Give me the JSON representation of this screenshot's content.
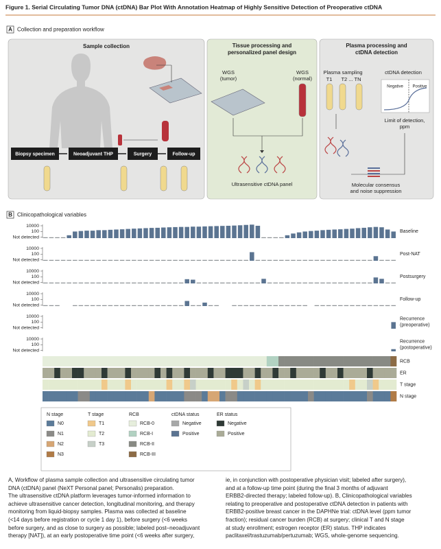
{
  "title": "Figure 1. Serial Circulating Tumor DNA (ctDNA) Bar Plot With Annotation Heatmap of Highly Sensitive Detection of Preoperative ctDNA",
  "panel_a": {
    "letter": "A",
    "heading": "Collection and preparation workflow",
    "sample_collection": {
      "title": "Sample collection",
      "steps": [
        "Biopsy specimen",
        "Neoadjuvant THP",
        "Surgery",
        "Follow-up"
      ]
    },
    "tissue": {
      "title": [
        "Tissue processing and",
        "personalized panel design"
      ],
      "wgs_tumor": [
        "WGS",
        "(tumor)"
      ],
      "wgs_normal": [
        "WGS",
        "(normal)"
      ],
      "panel": "Ultrasensitive ctDNA panel"
    },
    "plasma": {
      "title": [
        "Plasma processing and",
        "ctDNA detection"
      ],
      "sampling": "Plasma sampling",
      "t1": "T1",
      "t2": "T2 ... TN",
      "detection": "ctDNA detection",
      "negative": "Negative",
      "positive": "Positive",
      "lod": [
        "Limit of detection,",
        "ppm"
      ],
      "consensus": [
        "Molecular consensus",
        "and noise suppression"
      ]
    }
  },
  "chart_data": {
    "type": "bar",
    "letter": "B",
    "heading": "Clinicopathological variables",
    "log_scale": true,
    "ylim": [
      0.5,
      30000
    ],
    "yticks": [
      {
        "value": 10000,
        "label": "10000"
      },
      100,
      {
        "value": 1,
        "label": "Not detected"
      }
    ],
    "color": "#5b7491",
    "not_detected_color": "#8f9497",
    "rows": [
      {
        "name": [
          "Baseline"
        ],
        "values": [
          1,
          1,
          1,
          1,
          5,
          100,
          150,
          200,
          200,
          300,
          300,
          400,
          500,
          600,
          800,
          1000,
          1200,
          1500,
          1800,
          2000,
          2500,
          3000,
          3500,
          4000,
          4000,
          5000,
          5000,
          6000,
          7000,
          8000,
          9000,
          10000,
          12000,
          15000,
          20000,
          25000,
          10000,
          1,
          1,
          1,
          1,
          5,
          20,
          50,
          100,
          150,
          200,
          300,
          400,
          500,
          600,
          800,
          1000,
          1500,
          2000,
          3000,
          4000,
          3000,
          500,
          100
        ]
      },
      {
        "name": [
          "Post-NAT"
        ],
        "values": [
          1,
          1,
          1,
          1,
          1,
          1,
          1,
          1,
          1,
          1,
          1,
          1,
          1,
          1,
          1,
          1,
          1,
          1,
          1,
          1,
          1,
          1,
          1,
          1,
          1,
          1,
          1,
          1,
          1,
          1,
          1,
          1,
          1,
          1,
          1,
          500,
          1,
          1,
          1,
          1,
          1,
          1,
          1,
          1,
          1,
          1,
          1,
          1,
          1,
          1,
          1,
          1,
          1,
          1,
          1,
          1,
          20,
          1,
          1,
          1
        ]
      },
      {
        "name": [
          "Postsurgery"
        ],
        "values": [
          1,
          1,
          1,
          1,
          1,
          1,
          1,
          1,
          1,
          1,
          1,
          1,
          1,
          1,
          1,
          1,
          1,
          1,
          1,
          1,
          1,
          1,
          1,
          1,
          15,
          10,
          1,
          1,
          1,
          1,
          1,
          1,
          1,
          1,
          1,
          1,
          1,
          20,
          1,
          1,
          1,
          1,
          1,
          1,
          1,
          1,
          1,
          1,
          1,
          1,
          1,
          1,
          1,
          1,
          1,
          1,
          60,
          20,
          1,
          1
        ]
      },
      {
        "name": [
          "Follow-up"
        ],
        "values": [
          1,
          1,
          1,
          null,
          null,
          1,
          1,
          1,
          1,
          1,
          1,
          1,
          1,
          1,
          1,
          1,
          1,
          1,
          1,
          1,
          1,
          1,
          1,
          1,
          30,
          1,
          1,
          8,
          1,
          1,
          null,
          null,
          1,
          1,
          1,
          1,
          1,
          1,
          1,
          1,
          1,
          1,
          1,
          1,
          1,
          null,
          1,
          1,
          1,
          1,
          1,
          1,
          1,
          1,
          1,
          1,
          1,
          1,
          1,
          1
        ]
      },
      {
        "name": [
          "Recurrence",
          "(preoperative)"
        ],
        "values": [
          null,
          null,
          null,
          null,
          null,
          null,
          null,
          null,
          null,
          null,
          null,
          null,
          null,
          null,
          null,
          null,
          null,
          null,
          null,
          null,
          null,
          null,
          null,
          null,
          null,
          null,
          null,
          null,
          null,
          null,
          null,
          null,
          null,
          null,
          null,
          null,
          null,
          null,
          null,
          null,
          null,
          null,
          null,
          null,
          null,
          null,
          null,
          null,
          null,
          null,
          null,
          null,
          null,
          null,
          null,
          null,
          null,
          null,
          null,
          100
        ]
      },
      {
        "name": [
          "Recurrence",
          "(postoperative)"
        ],
        "values": [
          null,
          null,
          null,
          null,
          null,
          null,
          null,
          null,
          null,
          null,
          null,
          null,
          null,
          null,
          null,
          null,
          null,
          null,
          null,
          null,
          null,
          null,
          null,
          null,
          null,
          null,
          null,
          null,
          null,
          null,
          null,
          null,
          null,
          null,
          null,
          null,
          null,
          null,
          null,
          null,
          null,
          null,
          null,
          null,
          null,
          null,
          null,
          null,
          null,
          null,
          null,
          null,
          null,
          null,
          null,
          null,
          null,
          null,
          null,
          3
        ]
      }
    ],
    "heatmap": [
      {
        "name": "RCB",
        "colors": [
          "#e6eedc",
          "#b2d2c2",
          "#888a84",
          "#8c6b45"
        ],
        "values": [
          0,
          0,
          0,
          0,
          0,
          0,
          0,
          0,
          0,
          0,
          0,
          0,
          0,
          0,
          0,
          0,
          0,
          0,
          0,
          0,
          0,
          0,
          0,
          0,
          0,
          0,
          0,
          0,
          0,
          0,
          0,
          0,
          0,
          0,
          0,
          0,
          0,
          0,
          1,
          1,
          2,
          2,
          2,
          2,
          2,
          2,
          2,
          2,
          2,
          2,
          2,
          2,
          2,
          2,
          2,
          2,
          2,
          2,
          2,
          3
        ]
      },
      {
        "name": "ER",
        "colors": [
          "#2f3a36",
          "#aaab97"
        ],
        "values": [
          1,
          1,
          0,
          1,
          1,
          0,
          0,
          1,
          1,
          1,
          0,
          1,
          1,
          1,
          0,
          1,
          1,
          1,
          1,
          0,
          1,
          0,
          1,
          1,
          0,
          1,
          1,
          1,
          0,
          1,
          1,
          0,
          0,
          0,
          1,
          1,
          0,
          1,
          1,
          0,
          1,
          1,
          0,
          1,
          1,
          1,
          1,
          0,
          1,
          1,
          0,
          1,
          1,
          1,
          1,
          0,
          1,
          1,
          1,
          1
        ]
      },
      {
        "name": "T stage",
        "colors": [
          "#f0c98b",
          "#e3ebd1",
          "#c7d0c8"
        ],
        "values": [
          1,
          1,
          1,
          1,
          1,
          1,
          1,
          1,
          1,
          1,
          0,
          1,
          1,
          1,
          0,
          1,
          1,
          1,
          1,
          1,
          1,
          0,
          1,
          1,
          0,
          2,
          1,
          1,
          1,
          1,
          1,
          1,
          0,
          1,
          2,
          1,
          0,
          1,
          1,
          1,
          1,
          1,
          1,
          1,
          1,
          1,
          1,
          1,
          1,
          1,
          1,
          1,
          0,
          1,
          1,
          2,
          0,
          1,
          1,
          1
        ]
      },
      {
        "name": "N stage",
        "colors": [
          "#5b7b99",
          "#8b8a87",
          "#d6a674",
          "#b07b46"
        ],
        "values": [
          0,
          0,
          0,
          0,
          0,
          0,
          1,
          1,
          0,
          0,
          0,
          0,
          0,
          0,
          0,
          0,
          0,
          0,
          2,
          0,
          0,
          0,
          0,
          0,
          1,
          1,
          1,
          0,
          2,
          2,
          0,
          1,
          1,
          0,
          0,
          0,
          0,
          0,
          0,
          0,
          0,
          0,
          0,
          0,
          0,
          1,
          0,
          0,
          0,
          0,
          0,
          0,
          0,
          0,
          0,
          1,
          0,
          0,
          0,
          3
        ]
      }
    ],
    "legend": [
      {
        "title": "N stage",
        "items": [
          {
            "label": "N0",
            "color": "#5b7b99"
          },
          {
            "label": "N1",
            "color": "#8b8a87"
          },
          {
            "label": "N2",
            "color": "#d6a674"
          },
          {
            "label": "N3",
            "color": "#b07b46"
          }
        ]
      },
      {
        "title": "T stage",
        "items": [
          {
            "label": "T1",
            "color": "#f0c98b"
          },
          {
            "label": "T2",
            "color": "#e3ebd1"
          },
          {
            "label": "T3",
            "color": "#c7d0c8"
          }
        ]
      },
      {
        "title": "RCB",
        "items": [
          {
            "label": "RCB-0",
            "color": "#e6eedc"
          },
          {
            "label": "RCB-I",
            "color": "#b2d2c2"
          },
          {
            "label": "RCB-II",
            "color": "#888a84"
          },
          {
            "label": "RCB-III",
            "color": "#8c6b45"
          }
        ]
      },
      {
        "title": "ctDNA status",
        "items": [
          {
            "label": "Negative",
            "color": "#a7a8a8"
          },
          {
            "label": "Positive",
            "color": "#5b7491"
          }
        ]
      },
      {
        "title": "ER status",
        "items": [
          {
            "label": "Negative",
            "color": "#2f3a36"
          },
          {
            "label": "Positive",
            "color": "#aaab97"
          }
        ]
      }
    ]
  },
  "caption": {
    "left": [
      "A, Workflow of plasma sample collection and ultrasensitive circulating tumor",
      "DNA (ctDNA) panel (NeXT Personal panel; Personalis) preparation.",
      "The ultrasensitive ctDNA platform leverages tumor-informed information to",
      "achieve ultrasensitive cancer detection, longitudinal monitoring, and therapy",
      "monitoring from liquid-biopsy samples. Plasma was collected at baseline",
      "(<14 days before registration or cycle 1 day 1), before surgery (<6 weeks",
      "before surgery, and as close to surgery as possible; labeled post–neoadjuvant",
      "therapy [NAT]), at an early postoperative time point (<6 weeks after surgery,"
    ],
    "right": [
      "ie, in conjunction with postoperative physician visit; labeled after surgery),",
      "and at a follow-up time point (during the final 3 months of adjuvant",
      "ERBB2-directed therapy; labeled follow-up). B, Clinicopathological variables",
      "relating to preoperative and postoperative ctDNA detection in patients with",
      "ERBB2-positive breast cancer in the DAPHNe trial: ctDNA level (ppm tumor",
      "fraction); residual cancer burden (RCB) at surgery; clinical T and N stage",
      "at study enrollment; estrogen receptor (ER) status. THP indicates",
      "paclitaxel/trastuzumab/pertuzumab; WGS, whole-genome sequencing."
    ]
  }
}
